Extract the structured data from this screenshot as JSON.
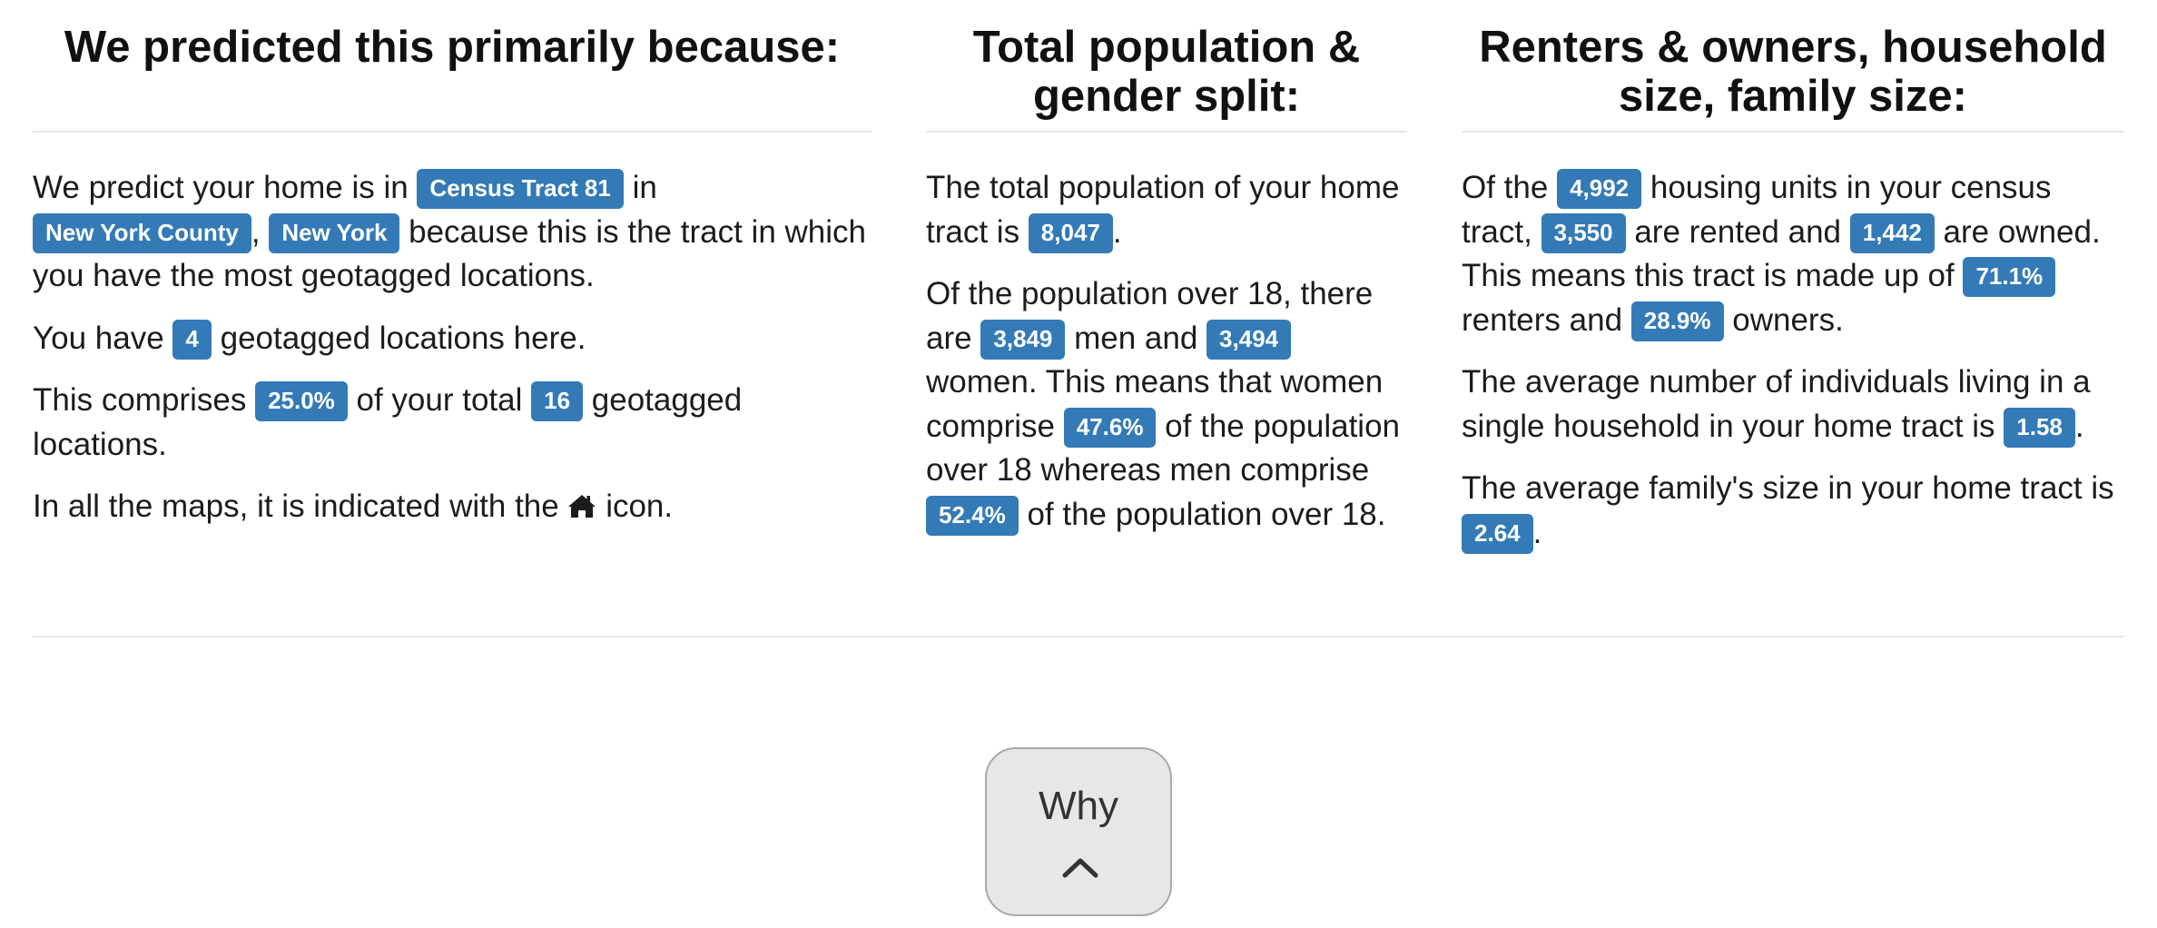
{
  "columns": [
    {
      "heading": "We predicted this primarily because:",
      "p1": {
        "t1": "We predict your home is in ",
        "tract": "Census Tract 81",
        "t2": " in ",
        "county": "New York County",
        "t3": ", ",
        "state": "New York",
        "t4": " because this is the tract in which you have the most geotagged locations."
      },
      "p2": {
        "t1": "You have ",
        "count": "4",
        "t2": " geotagged locations here."
      },
      "p3": {
        "t1": "This comprises ",
        "percent": "25.0%",
        "t2": " of your total ",
        "total": "16",
        "t3": " geotagged locations."
      },
      "p4": {
        "t1": "In all the maps, it is indicated with the ",
        "icon": "home-icon",
        "t2": " icon."
      }
    },
    {
      "heading": "Total population & gender split:",
      "p1": {
        "t1": "The total population of your home tract is ",
        "population": "8,047",
        "t2": "."
      },
      "p2": {
        "t1": "Of the population over 18, there are ",
        "men": "3,849",
        "t2": " men and ",
        "women": "3,494",
        "t3": " women. This means that women comprise ",
        "women_pct": "47.6%",
        "t4": " of the population over 18 whereas men comprise ",
        "men_pct": "52.4%",
        "t5": " of the population over 18."
      }
    },
    {
      "heading": "Renters & owners, household size, family size:",
      "p1": {
        "t1": "Of the ",
        "units": "4,992",
        "t2": " housing units in your census tract, ",
        "rented": "3,550",
        "t3": " are rented and ",
        "owned": "1,442",
        "t4": " are owned. This means this tract is made up of ",
        "renters_pct": "71.1%",
        "t5": " renters and ",
        "owners_pct": "28.9%",
        "t6": " owners."
      },
      "p2": {
        "t1": "The average number of individuals living in a single household in your home tract is ",
        "household": "1.58",
        "t2": "."
      },
      "p3": {
        "t1": "The average family's size in your home tract is ",
        "family": "2.64",
        "t2": "."
      }
    }
  ],
  "why_button": {
    "label": "Why",
    "icon": "chevron-up-icon"
  },
  "colors": {
    "label_bg": "#337ab7",
    "label_text": "#ffffff",
    "divider": "#e8e8e8",
    "button_bg": "#e7e7e7",
    "button_border": "#a8a8a8"
  }
}
